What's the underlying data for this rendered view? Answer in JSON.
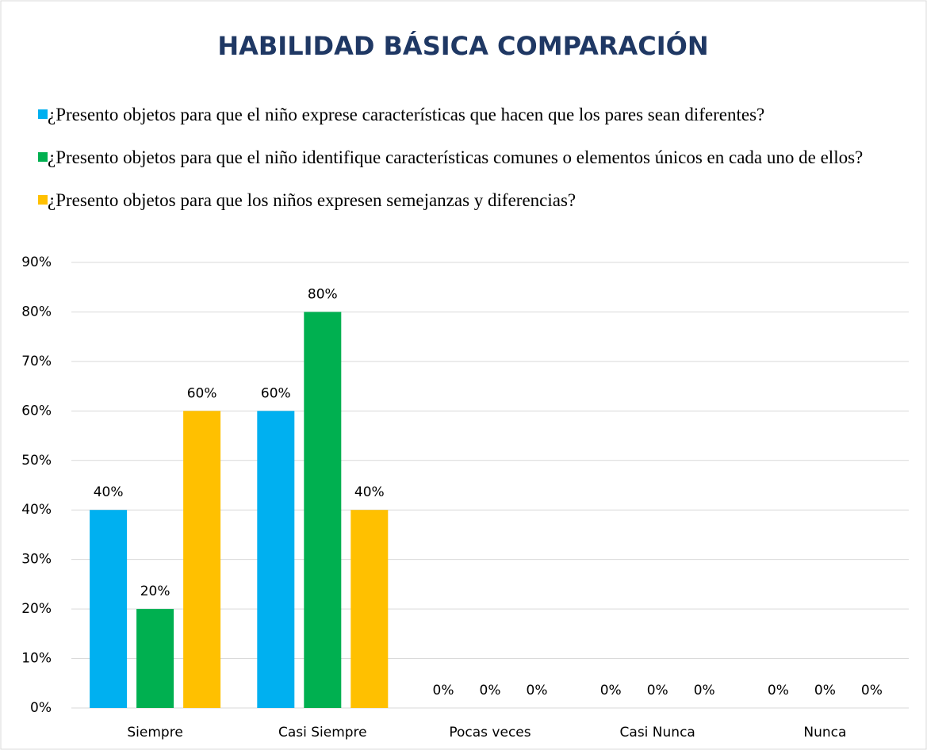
{
  "chart_data": {
    "type": "bar",
    "title": "HABILIDAD BÁSICA COMPARACIÓN",
    "categories": [
      "Siempre",
      "Casi Siempre",
      "Pocas veces",
      "Casi Nunca",
      "Nunca"
    ],
    "series": [
      {
        "name": "¿Presento objetos para que el niño exprese características que hacen que los pares sean diferentes?",
        "color": "#00b0f0",
        "values": [
          40,
          60,
          0,
          0,
          0
        ],
        "value_labels": [
          "40%",
          "60%",
          "0%",
          "0%",
          "0%"
        ]
      },
      {
        "name": "¿Presento objetos para que el niño identifique características comunes o elementos únicos en cada uno de ellos?",
        "color": "#00b050",
        "values": [
          20,
          80,
          0,
          0,
          0
        ],
        "value_labels": [
          "20%",
          "80%",
          "0%",
          "0%",
          "0%"
        ]
      },
      {
        "name": "¿Presento objetos para que los niños expresen semejanzas y diferencias?",
        "color": "#ffc000",
        "values": [
          60,
          40,
          0,
          0,
          0
        ],
        "value_labels": [
          "60%",
          "40%",
          "0%",
          "0%",
          "0%"
        ]
      }
    ],
    "ylim": [
      0,
      90
    ],
    "yticks": [
      {
        "value": 0,
        "label": "0%"
      },
      {
        "value": 10,
        "label": "10%"
      },
      {
        "value": 20,
        "label": "20%"
      },
      {
        "value": 30,
        "label": "30%"
      },
      {
        "value": 40,
        "label": "40%"
      },
      {
        "value": 50,
        "label": "50%"
      },
      {
        "value": 60,
        "label": "60%"
      },
      {
        "value": 70,
        "label": "70%"
      },
      {
        "value": 80,
        "label": "80%"
      },
      {
        "value": 90,
        "label": "90%"
      }
    ],
    "grid": true,
    "legend": "top"
  }
}
